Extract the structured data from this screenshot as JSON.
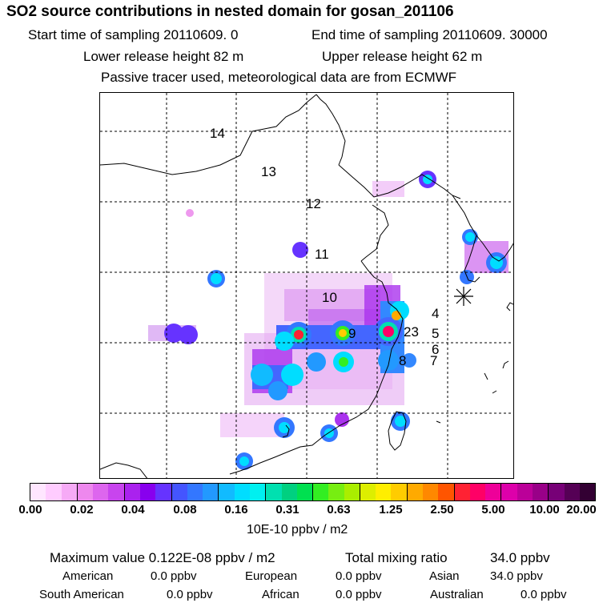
{
  "header": {
    "title": "SO2 source contributions in nested domain for gosan_201106",
    "start_label": "Start time of sampling 20110609.     0",
    "end_label": "End time of sampling 20110609. 30000",
    "lower_label": "Lower release height   82 m",
    "upper_label": "Upper release height   62 m",
    "tracer_note": "Passive tracer used, meteorological data are from ECMWF"
  },
  "map": {
    "region_labels": [
      "14",
      "13",
      "12",
      "11",
      "10",
      "9",
      "23",
      "4",
      "5",
      "6",
      "8",
      "7"
    ],
    "receptor_marker": "asterisk-receptor-icon",
    "grid": "dashed"
  },
  "colorbar": {
    "tick_labels": [
      "0.00",
      "0.02",
      "0.04",
      "0.08",
      "0.16",
      "0.31",
      "0.63",
      "1.25",
      "2.50",
      "5.00",
      "10.00",
      "20.00"
    ],
    "colors": [
      "#ffe6ff",
      "#ffccff",
      "#f6aaf6",
      "#ee88ee",
      "#dd66ee",
      "#c844ee",
      "#aa22ee",
      "#8800ee",
      "#6633ff",
      "#4455ff",
      "#3377ff",
      "#2299ff",
      "#11bbff",
      "#00ddff",
      "#00f0f0",
      "#00e0b0",
      "#00d080",
      "#00e050",
      "#33ee22",
      "#77ee11",
      "#aaee00",
      "#ddee00",
      "#ffee00",
      "#ffcc00",
      "#ffaa00",
      "#ff8800",
      "#ff5500",
      "#ff2233",
      "#ff0066",
      "#ee0099",
      "#dd00aa",
      "#bb0099",
      "#990088",
      "#770077",
      "#550055",
      "#330033"
    ],
    "unit": "10E-10 ppbv / m2"
  },
  "stats": {
    "max_label": "Maximum value  0.122E-08 ppbv / m2",
    "total_label": "Total mixing ratio",
    "total_value": "34.0 ppbv",
    "rows": [
      [
        {
          "label": "American",
          "value": "0.0 ppbv"
        },
        {
          "label": "European",
          "value": "0.0 ppbv"
        },
        {
          "label": "Asian",
          "value": "34.0 ppbv"
        }
      ],
      [
        {
          "label": "South American",
          "value": "0.0 ppbv"
        },
        {
          "label": "African",
          "value": "0.0 ppbv"
        },
        {
          "label": "Australian",
          "value": "0.0 ppbv"
        }
      ]
    ]
  }
}
